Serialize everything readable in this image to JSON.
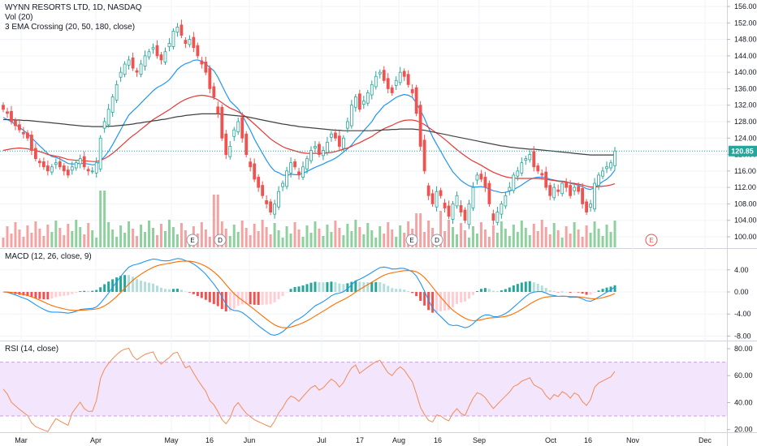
{
  "price_title": "WYNN RESORTS LTD, 1D, NASDAQ",
  "vol_title": "Vol (20)",
  "ema_title": "3 EMA Crossing (20, 50, 180, close)",
  "macd_title": "MACD (12, 26, close, 9)",
  "rsi_title": "RSI (14, close)",
  "last_price_label": "120.85",
  "colors": {
    "up": "#26a69a",
    "down": "#ef5350",
    "vol_up": "#8fd19e",
    "vol_down": "#f4a3a3",
    "ema20": "#2196f3",
    "ema50": "#e53935",
    "ema180": "#424242",
    "macd": "#2196f3",
    "signal": "#ff6d00",
    "rsi": "#f28b5a",
    "rsi_band": "#f3e5fb"
  },
  "chart_data": [
    {
      "type": "candlestick",
      "title": "WYNN RESORTS LTD, 1D, NASDAQ",
      "x_ticks": [
        "Mar",
        "Apr",
        "May",
        "16",
        "Jun",
        "Jul",
        "17",
        "Aug",
        "16",
        "Sep",
        "Oct",
        "16",
        "Nov",
        "Dec"
      ],
      "y_ticks": [
        "156.00",
        "152.00",
        "148.00",
        "144.00",
        "140.00",
        "136.00",
        "132.00",
        "128.00",
        "124.00",
        "120.00",
        "116.00",
        "112.00",
        "108.00",
        "104.00",
        "100.00"
      ],
      "ylim": [
        98,
        157
      ],
      "last_close": 120.85,
      "close": [
        131,
        130,
        128,
        127,
        126,
        125,
        124,
        121,
        119,
        118,
        117,
        116,
        117,
        118,
        117,
        116,
        115,
        117,
        118,
        119,
        117,
        116,
        116,
        118,
        124,
        128,
        131,
        134,
        137,
        140,
        142,
        143,
        141,
        140,
        142,
        144,
        145,
        146,
        144,
        143,
        145,
        147,
        150,
        151,
        149,
        147,
        148,
        146,
        144,
        142,
        140,
        136,
        134,
        130,
        124,
        120,
        122,
        126,
        128,
        124,
        120,
        117,
        114,
        112,
        110,
        108,
        106,
        108,
        111,
        113,
        116,
        118,
        117,
        115,
        117,
        119,
        121,
        122,
        120,
        121,
        123,
        125,
        124,
        122,
        124,
        128,
        132,
        134,
        131,
        133,
        135,
        137,
        139,
        140,
        138,
        136,
        135,
        138,
        140,
        139,
        137,
        135,
        130,
        122,
        116,
        110,
        108,
        111,
        110,
        107,
        105,
        108,
        110,
        106,
        104,
        108,
        112,
        115,
        114,
        112,
        108,
        104,
        106,
        108,
        110,
        112,
        115,
        116,
        118,
        119,
        120,
        117,
        116,
        115,
        112,
        110,
        112,
        111,
        113,
        112,
        110,
        112,
        111,
        108,
        106,
        108,
        113,
        115,
        116,
        117,
        118,
        120.85
      ],
      "series": [
        {
          "name": "EMA 20",
          "values": [
            129,
            128.5,
            128,
            127.3,
            126.6,
            125.9,
            125.1,
            124.1,
            123.1,
            122.1,
            121.2,
            120.2,
            119.5,
            119.3,
            118.9,
            118.4,
            117.8,
            117.7,
            117.7,
            117.9,
            117.8,
            117.7,
            117.5,
            117.6,
            118.5,
            119.5,
            120.8,
            122.4,
            124.2,
            126.0,
            127.9,
            129.6,
            130.6,
            131.5,
            132.5,
            133.5,
            134.5,
            135.5,
            136.3,
            136.8,
            137.4,
            138.2,
            139.4,
            140.7,
            141.5,
            142.1,
            142.4,
            142.9,
            143.0,
            142.7,
            142.0,
            141.2,
            140.4,
            138.8,
            136.8,
            134.8,
            133.0,
            132.1,
            131.1,
            129.6,
            127.7,
            125.9,
            123.8,
            122.0,
            120.3,
            118.6,
            117.1,
            116.0,
            115.6,
            115.0,
            114.9,
            115.2,
            115.1,
            115.1,
            115.5,
            115.9,
            116.4,
            116.9,
            117.3,
            117.7,
            118.2,
            118.6,
            119.1,
            119.8,
            120.6,
            121.4,
            122.3,
            123.6,
            124.6,
            125.8,
            126.9,
            128.0,
            129.6,
            130.7,
            131.9,
            132.5,
            133.2,
            133.9,
            134.3,
            134.6,
            134.4,
            133.9,
            132.5,
            130.8,
            128.8,
            126.5,
            124.3,
            122.5,
            120.8,
            119.0,
            117.4,
            115.8,
            114.7,
            113.7,
            113.0,
            112.4,
            112.1,
            112.1,
            112.2,
            112.0,
            111.6,
            111.2,
            111.0,
            110.7,
            110.8,
            111.1,
            111.5,
            112.0,
            112.6,
            113.3,
            113.9,
            114.3,
            114.5,
            114.5,
            114.4,
            114.0,
            113.8,
            113.6,
            113.5,
            113.4,
            113.0,
            112.8,
            112.5,
            112.2,
            111.7,
            111.5,
            112.0,
            112.7,
            113.4,
            114.0,
            114.9,
            116.2
          ]
        },
        {
          "name": "EMA 50",
          "values": [
            121,
            121.2,
            121.4,
            121.5,
            121.6,
            121.5,
            121.4,
            121.2,
            121.0,
            120.7,
            120.4,
            120.0,
            119.8,
            119.6,
            119.4,
            119.1,
            118.8,
            118.7,
            118.6,
            118.6,
            118.5,
            118.4,
            118.3,
            118.3,
            118.6,
            119.0,
            119.6,
            120.3,
            121.1,
            122.0,
            122.9,
            123.8,
            124.6,
            125.3,
            126.1,
            126.9,
            127.7,
            128.5,
            129.1,
            129.7,
            130.3,
            130.9,
            131.6,
            132.3,
            132.9,
            133.4,
            133.8,
            134.1,
            134.3,
            134.4,
            134.3,
            134.1,
            133.8,
            133.3,
            132.6,
            131.9,
            131.3,
            130.9,
            130.4,
            129.8,
            129.1,
            128.3,
            127.4,
            126.5,
            125.6,
            124.7,
            123.8,
            123.1,
            122.5,
            121.9,
            121.5,
            121.2,
            120.9,
            120.6,
            120.4,
            120.3,
            120.3,
            120.3,
            120.3,
            120.3,
            120.4,
            120.5,
            120.7,
            121.0,
            121.3,
            121.6,
            122.0,
            122.5,
            122.9,
            123.4,
            123.9,
            124.4,
            125.1,
            125.7,
            126.3,
            126.7,
            127.1,
            127.6,
            128.0,
            128.3,
            128.4,
            128.4,
            128.2,
            127.8,
            127.3,
            126.6,
            125.9,
            125.2,
            124.5,
            123.7,
            122.9,
            122.0,
            121.2,
            120.4,
            119.7,
            119.0,
            118.4,
            117.9,
            117.4,
            116.8,
            116.2,
            115.7,
            115.3,
            114.9,
            114.6,
            114.4,
            114.3,
            114.2,
            114.2,
            114.2,
            114.2,
            114.2,
            114.2,
            114.1,
            114.0,
            113.8,
            113.7,
            113.5,
            113.4,
            113.3,
            113.1,
            113.0,
            112.8,
            112.6,
            112.3,
            112.1,
            112.1,
            112.2,
            112.3,
            112.4,
            112.6,
            112.9
          ]
        },
        {
          "name": "EMA 180",
          "values": [
            128.5,
            128.5,
            128.5,
            128.4,
            128.4,
            128.3,
            128.3,
            128.2,
            128.1,
            128.0,
            127.9,
            127.8,
            127.7,
            127.6,
            127.5,
            127.4,
            127.3,
            127.2,
            127.1,
            127.0,
            126.9,
            126.9,
            126.8,
            126.8,
            126.8,
            126.8,
            126.9,
            126.9,
            127.0,
            127.1,
            127.2,
            127.3,
            127.4,
            127.6,
            127.7,
            127.9,
            128.0,
            128.2,
            128.3,
            128.5,
            128.6,
            128.8,
            129.0,
            129.2,
            129.3,
            129.5,
            129.6,
            129.7,
            129.8,
            129.9,
            129.9,
            129.9,
            129.9,
            129.9,
            129.8,
            129.7,
            129.6,
            129.5,
            129.4,
            129.3,
            129.2,
            129.0,
            128.8,
            128.6,
            128.4,
            128.2,
            128.0,
            127.8,
            127.6,
            127.4,
            127.3,
            127.1,
            127.0,
            126.8,
            126.7,
            126.6,
            126.5,
            126.4,
            126.3,
            126.2,
            126.1,
            126.0,
            125.9,
            125.9,
            125.8,
            125.8,
            125.8,
            125.8,
            125.8,
            125.8,
            125.8,
            125.8,
            125.9,
            125.9,
            126.0,
            126.0,
            126.1,
            126.1,
            126.2,
            126.2,
            126.2,
            126.2,
            126.1,
            126.0,
            125.9,
            125.7,
            125.5,
            125.3,
            125.1,
            124.9,
            124.7,
            124.5,
            124.3,
            124.1,
            123.9,
            123.7,
            123.5,
            123.3,
            123.1,
            122.9,
            122.7,
            122.5,
            122.3,
            122.1,
            122.0,
            121.8,
            121.7,
            121.6,
            121.5,
            121.4,
            121.3,
            121.3,
            121.2,
            121.1,
            121.0,
            120.9,
            120.8,
            120.7,
            120.6,
            120.5,
            120.4,
            120.3,
            120.2,
            120.1,
            120.0,
            119.9,
            119.9,
            119.9,
            119.9,
            119.9,
            119.9,
            119.9
          ]
        }
      ]
    },
    {
      "type": "bar",
      "title": "Vol (20)",
      "markers": [
        "E",
        "D",
        "E",
        "D",
        "E"
      ]
    },
    {
      "type": "line",
      "title": "MACD (12, 26, close, 9)",
      "y_ticks": [
        "4.00",
        "0.00",
        "-4.00",
        "-8.00"
      ],
      "ylim": [
        -9,
        7.5
      ]
    },
    {
      "type": "line",
      "title": "RSI (14, close)",
      "y_ticks": [
        "80.00",
        "60.00",
        "40.00",
        "20.00"
      ],
      "ylim": [
        17,
        83
      ],
      "band": [
        30,
        70
      ]
    }
  ]
}
